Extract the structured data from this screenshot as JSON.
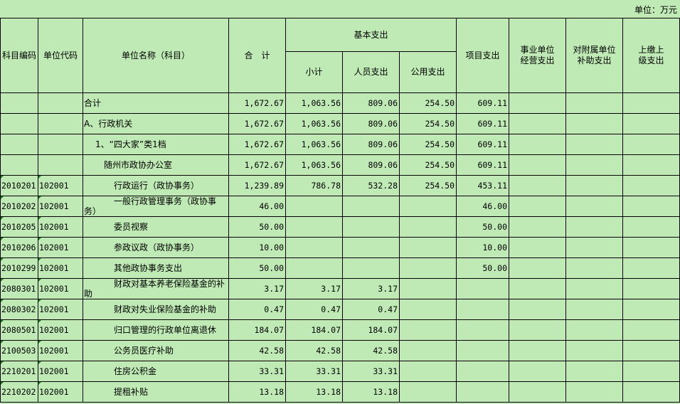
{
  "unit_label": "单位：万元",
  "headers": {
    "subject_code": "科目编码",
    "unit_code": "单位代码",
    "unit_name": "单位名称（科目）",
    "total": "合　计",
    "basic": "基本支出",
    "subtotal": "小计",
    "personnel": "人员支出",
    "public": "公用支出",
    "project": "项目支出",
    "business": "事业单位经营支出",
    "subsidy": "对附属单位补助支出",
    "upper": "上缴上级支出"
  },
  "rows": [
    {
      "code": "",
      "unit": "",
      "name": "合计",
      "level": 0,
      "total": "1,672.67",
      "subtotal": "1,063.56",
      "personnel": "809.06",
      "public": "254.50",
      "project": "609.11"
    },
    {
      "code": "",
      "unit": "",
      "name": "A、行政机关",
      "level": 1,
      "total": "1,672.67",
      "subtotal": "1,063.56",
      "personnel": "809.06",
      "public": "254.50",
      "project": "609.11"
    },
    {
      "code": "",
      "unit": "",
      "name": "1、“四大家”类1档",
      "level": 2,
      "total": "1,672.67",
      "subtotal": "1,063.56",
      "personnel": "809.06",
      "public": "254.50",
      "project": "609.11"
    },
    {
      "code": "",
      "unit": "",
      "name": "随州市政协办公室",
      "level": 3,
      "total": "1,672.67",
      "subtotal": "1,063.56",
      "personnel": "809.06",
      "public": "254.50",
      "project": "609.11"
    },
    {
      "code": "2010201",
      "unit": "102001",
      "name": "行政运行（政协事务）",
      "level": 4,
      "total": "1,239.89",
      "subtotal": "786.78",
      "personnel": "532.28",
      "public": "254.50",
      "project": "453.11"
    },
    {
      "code": "2010202",
      "unit": "102001",
      "name": "一般行政管理事务（政协事务）",
      "level": 4,
      "total": "46.00",
      "subtotal": "",
      "personnel": "",
      "public": "",
      "project": "46.00"
    },
    {
      "code": "2010205",
      "unit": "102001",
      "name": "委员视察",
      "level": 4,
      "total": "50.00",
      "subtotal": "",
      "personnel": "",
      "public": "",
      "project": "50.00"
    },
    {
      "code": "2010206",
      "unit": "102001",
      "name": "参政议政（政协事务）",
      "level": 4,
      "total": "10.00",
      "subtotal": "",
      "personnel": "",
      "public": "",
      "project": "10.00"
    },
    {
      "code": "2010299",
      "unit": "102001",
      "name": "其他政协事务支出",
      "level": 4,
      "total": "50.00",
      "subtotal": "",
      "personnel": "",
      "public": "",
      "project": "50.00"
    },
    {
      "code": "2080301",
      "unit": "102001",
      "name": "财政对基本养老保险基金的补助",
      "level": 4,
      "total": "3.17",
      "subtotal": "3.17",
      "personnel": "3.17",
      "public": "",
      "project": ""
    },
    {
      "code": "2080302",
      "unit": "102001",
      "name": "财政对失业保险基金的补助",
      "level": 4,
      "total": "0.47",
      "subtotal": "0.47",
      "personnel": "0.47",
      "public": "",
      "project": ""
    },
    {
      "code": "2080501",
      "unit": "102001",
      "name": "归口管理的行政单位离退休",
      "level": 4,
      "total": "184.07",
      "subtotal": "184.07",
      "personnel": "184.07",
      "public": "",
      "project": ""
    },
    {
      "code": "2100503",
      "unit": "102001",
      "name": "公务员医疗补助",
      "level": 4,
      "total": "42.58",
      "subtotal": "42.58",
      "personnel": "42.58",
      "public": "",
      "project": ""
    },
    {
      "code": "2210201",
      "unit": "102001",
      "name": "住房公积金",
      "level": 4,
      "total": "33.31",
      "subtotal": "33.31",
      "personnel": "33.31",
      "public": "",
      "project": ""
    },
    {
      "code": "2210202",
      "unit": "102001",
      "name": "提租补贴",
      "level": 4,
      "total": "13.18",
      "subtotal": "13.18",
      "personnel": "13.18",
      "public": "",
      "project": ""
    }
  ]
}
